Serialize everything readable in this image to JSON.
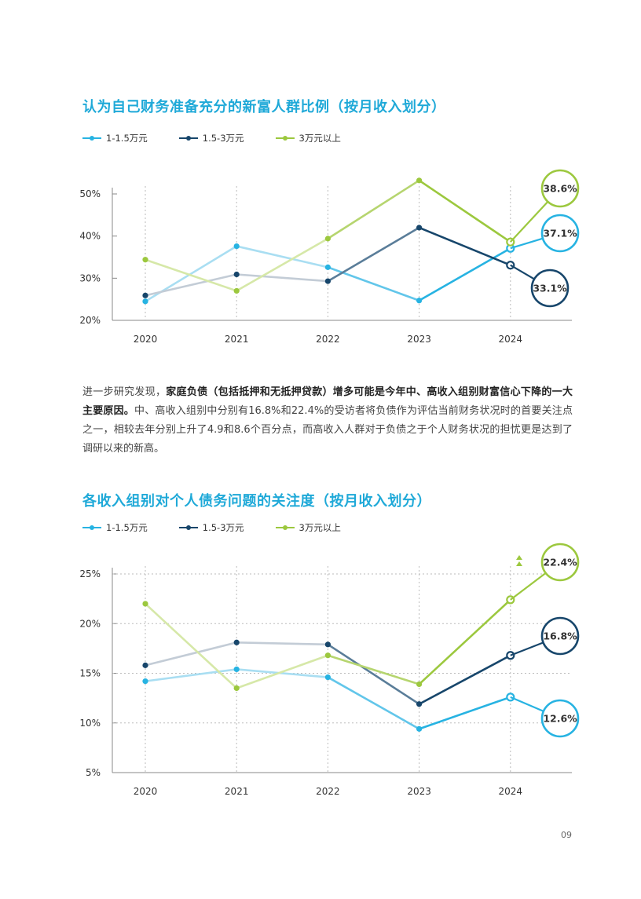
{
  "page_number": "09",
  "legend": [
    {
      "label": "1-1.5万元",
      "color": "#27b3e2"
    },
    {
      "label": "1.5-3万元",
      "color": "#17466b"
    },
    {
      "label": "3万元以上",
      "color": "#9cc83e"
    }
  ],
  "body": {
    "p1": "进一步研究发现，",
    "p2": "家庭负债（包括抵押和无抵押贷款）增多可能是今年中、高收入组别财富信心下降的一大主要原因。",
    "p3": "中、高收入组别中分别有16.8%和22.4%的受访者将负债作为评估当前财务状况时的首要关注点之一，相较去年分别上升了4.9和8.6个百分点，而高收入人群对于负债之于个人财务状况的担忧更是达到了调研以来的新高。"
  },
  "chart_data": [
    {
      "type": "line",
      "title": "认为自己财务准备充分的新富人群比例（按月收入划分）",
      "x": [
        "2020",
        "2021",
        "2022",
        "2023",
        "2024"
      ],
      "y_ticks": [
        "20%",
        "30%",
        "40%",
        "50%"
      ],
      "ylim": [
        20,
        50
      ],
      "grid": "vertical dotted",
      "legend_position": "top-left",
      "series": [
        {
          "name": "1-1.5万元",
          "color": "#27b3e2",
          "values": [
            24.5,
            37.6,
            32.6,
            24.7,
            37.1
          ]
        },
        {
          "name": "1.5-3万元",
          "color": "#17466b",
          "values": [
            25.9,
            30.9,
            29.3,
            42.0,
            33.1
          ]
        },
        {
          "name": "3万元以上",
          "color": "#9cc83e",
          "values": [
            34.4,
            27.0,
            39.4,
            53.2,
            38.6
          ]
        }
      ],
      "callouts": [
        {
          "series": 2,
          "text": "38.6%"
        },
        {
          "series": 0,
          "text": "37.1%"
        },
        {
          "series": 1,
          "text": "33.1%"
        }
      ]
    },
    {
      "type": "line",
      "title": "各收入组别对个人债务问题的关注度（按月收入划分）",
      "x": [
        "2020",
        "2021",
        "2022",
        "2023",
        "2024"
      ],
      "y_ticks": [
        "5%",
        "10%",
        "15%",
        "20%",
        "25%"
      ],
      "ylim": [
        5,
        25
      ],
      "grid": "vertical and horizontal dotted",
      "legend_position": "top-left",
      "series": [
        {
          "name": "1-1.5万元",
          "color": "#27b3e2",
          "values": [
            14.2,
            15.4,
            14.6,
            9.4,
            12.6
          ]
        },
        {
          "name": "1.5-3万元",
          "color": "#17466b",
          "values": [
            15.8,
            18.1,
            17.9,
            11.9,
            16.8
          ]
        },
        {
          "name": "3万元以上",
          "color": "#9cc83e",
          "values": [
            22.0,
            13.5,
            16.8,
            13.9,
            22.4
          ]
        }
      ],
      "callouts": [
        {
          "series": 2,
          "text": "22.4%"
        },
        {
          "series": 1,
          "text": "16.8%"
        },
        {
          "series": 0,
          "text": "12.6%"
        }
      ]
    }
  ]
}
